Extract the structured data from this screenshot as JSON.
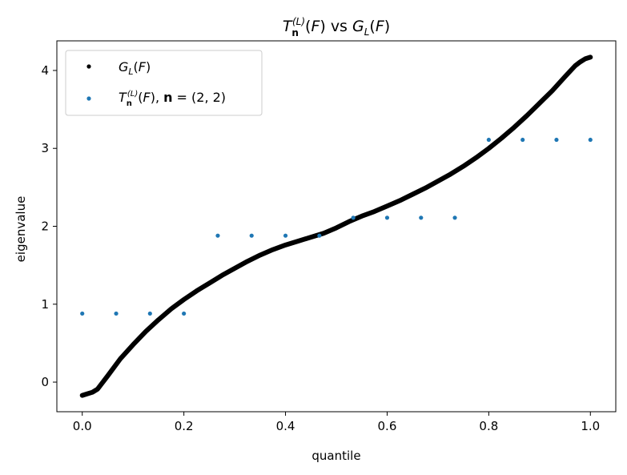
{
  "chart_data": {
    "type": "scatter",
    "title": {
      "T": "T",
      "T_sub": "n",
      "T_sup": "(L)",
      "F_open": "(",
      "F": "F",
      "F_close": ")",
      "vs": "vs",
      "G": "G",
      "G_sub": "L",
      "G_F_open": "(",
      "G_F": "F",
      "G_F_close": ")"
    },
    "xlabel": "quantile",
    "ylabel": "eigenvalue",
    "xlim": [
      -0.05,
      1.05
    ],
    "ylim": [
      -0.38,
      4.38
    ],
    "xticks": [
      0.0,
      0.2,
      0.4,
      0.6,
      0.8,
      1.0
    ],
    "xtick_labels": [
      "0.0",
      "0.2",
      "0.4",
      "0.6",
      "0.8",
      "1.0"
    ],
    "yticks": [
      0,
      1,
      2,
      3,
      4
    ],
    "ytick_labels": [
      "0",
      "1",
      "2",
      "3",
      "4"
    ],
    "grid": false,
    "legend_position": "top-left",
    "series": [
      {
        "legend": {
          "G": "G",
          "G_sub": "L",
          "open": "(",
          "F": "F",
          "close": ")"
        },
        "color": "#000000",
        "marker": "dense-curve",
        "x": [
          0.0,
          0.01,
          0.02,
          0.03,
          0.05,
          0.075,
          0.1,
          0.125,
          0.15,
          0.175,
          0.2,
          0.225,
          0.25,
          0.275,
          0.3,
          0.325,
          0.35,
          0.375,
          0.4,
          0.425,
          0.45,
          0.475,
          0.5,
          0.525,
          0.55,
          0.575,
          0.6,
          0.625,
          0.65,
          0.675,
          0.7,
          0.725,
          0.75,
          0.775,
          0.8,
          0.825,
          0.85,
          0.875,
          0.9,
          0.925,
          0.95,
          0.97,
          0.98,
          0.99,
          1.0
        ],
        "y": [
          -0.17,
          -0.15,
          -0.13,
          -0.09,
          0.08,
          0.3,
          0.48,
          0.65,
          0.8,
          0.94,
          1.06,
          1.17,
          1.27,
          1.37,
          1.46,
          1.55,
          1.63,
          1.7,
          1.76,
          1.81,
          1.86,
          1.91,
          1.98,
          2.06,
          2.13,
          2.19,
          2.26,
          2.33,
          2.41,
          2.49,
          2.58,
          2.67,
          2.77,
          2.88,
          3.0,
          3.13,
          3.27,
          3.42,
          3.58,
          3.74,
          3.92,
          4.06,
          4.11,
          4.15,
          4.17
        ]
      },
      {
        "legend": {
          "T": "T",
          "T_sub": "n",
          "T_sup": "(L)",
          "open": "(",
          "F": "F",
          "close": "),",
          "n": "n",
          "eq": " = (2, 2)"
        },
        "color": "#1f77b4",
        "marker": "dot",
        "x": [
          0.0,
          0.0667,
          0.1333,
          0.2,
          0.2667,
          0.3333,
          0.4,
          0.4667,
          0.5333,
          0.6,
          0.6667,
          0.7333,
          0.8,
          0.8667,
          0.9333,
          1.0
        ],
        "y": [
          0.88,
          0.88,
          0.88,
          0.88,
          1.88,
          1.88,
          1.88,
          1.88,
          2.11,
          2.11,
          2.11,
          2.11,
          3.11,
          3.11,
          3.11,
          3.11
        ]
      }
    ]
  }
}
